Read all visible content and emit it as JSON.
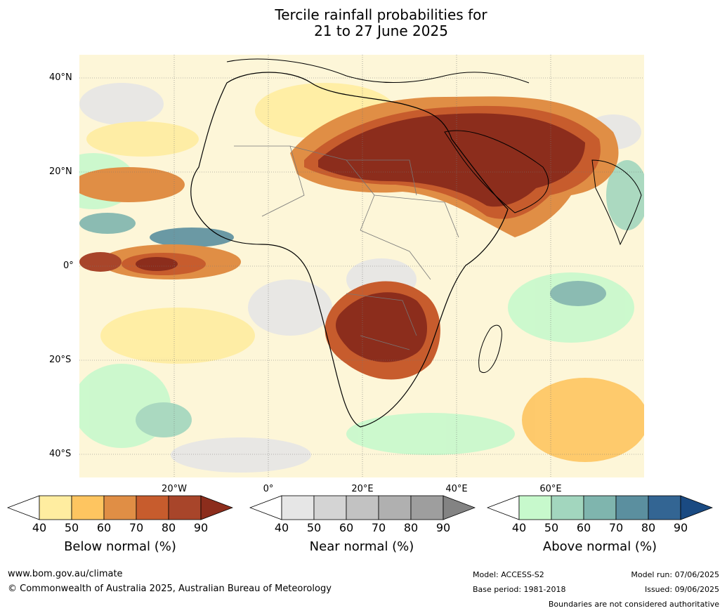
{
  "title_line1": "Tercile rainfall probabilities for",
  "title_line2": "21 to 27 June 2025",
  "lat_labels": [
    "40°N",
    "20°N",
    "0°",
    "20°S",
    "40°S"
  ],
  "lon_labels": [
    "20°W",
    "0°",
    "20°E",
    "40°E",
    "60°E"
  ],
  "colorbars": [
    {
      "label": "Below normal (%)",
      "ticks": [
        "40",
        "50",
        "60",
        "70",
        "80",
        "90"
      ],
      "colors": [
        "#ffffff",
        "#ffeda0",
        "#fec560",
        "#e08e45",
        "#c75c2d",
        "#a8452a",
        "#8c2d1c"
      ]
    },
    {
      "label": "Near normal (%)",
      "ticks": [
        "40",
        "50",
        "60",
        "70",
        "80",
        "90"
      ],
      "colors": [
        "#ffffff",
        "#e6e6e6",
        "#d4d4d4",
        "#c2c2c2",
        "#b0b0b0",
        "#9e9e9e",
        "#838383"
      ]
    },
    {
      "label": "Above normal (%)",
      "ticks": [
        "40",
        "50",
        "60",
        "70",
        "80",
        "90"
      ],
      "colors": [
        "#ffffff",
        "#c7f9cc",
        "#a2d6be",
        "#7fb5ae",
        "#5b8f9f",
        "#336593",
        "#1a4a82"
      ]
    }
  ],
  "footer": {
    "url": "www.bom.gov.au/climate",
    "copyright": "© Commonwealth of Australia 2025, Australian Bureau of Meteorology",
    "model": "Model: ACCESS-S2",
    "base_period": "Base period: 1981-2018",
    "model_run": "Model run: 07/06/2025",
    "issued": "Issued: 09/06/2025",
    "disclaimer": "Boundaries are not considered authoritative"
  }
}
